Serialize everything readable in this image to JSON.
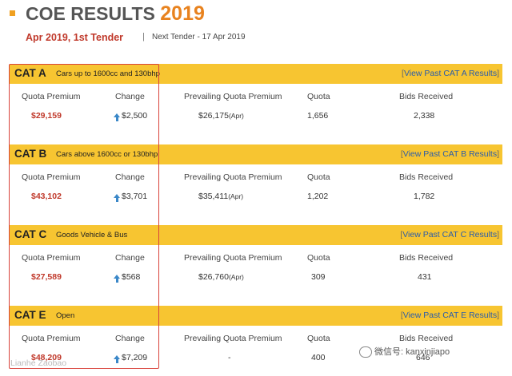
{
  "header": {
    "title_main": "COE RESULTS",
    "title_year": "2019",
    "tender": "Apr 2019, 1st Tender",
    "separator": "|",
    "next_tender": "Next Tender - 17 Apr 2019"
  },
  "columns": {
    "quota_premium": "Quota Premium",
    "change": "Change",
    "prevailing": "Prevailing Quota Premium",
    "quota": "Quota",
    "bids": "Bids Received"
  },
  "categories": [
    {
      "code": "CAT A",
      "desc": "Cars up to 1600cc and 130bhp",
      "view_link": "View Past CAT A Results",
      "quota_premium": "$29,159",
      "change": "$2,500",
      "prevailing": "$26,175",
      "prevailing_suffix": "(Apr)",
      "quota": "1,656",
      "bids": "2,338"
    },
    {
      "code": "CAT B",
      "desc": "Cars above 1600cc or 130bhp",
      "view_link": "View Past CAT B Results",
      "quota_premium": "$43,102",
      "change": "$3,701",
      "prevailing": "$35,411",
      "prevailing_suffix": "(Apr)",
      "quota": "1,202",
      "bids": "1,782"
    },
    {
      "code": "CAT C",
      "desc": "Goods Vehicle & Bus",
      "view_link": "View Past CAT C Results",
      "quota_premium": "$27,589",
      "change": "$568",
      "prevailing": "$26,760",
      "prevailing_suffix": "(Apr)",
      "quota": "309",
      "bids": "431"
    },
    {
      "code": "CAT E",
      "desc": "Open",
      "view_link": "View Past CAT E Results",
      "quota_premium": "$48,209",
      "change": "$7,209",
      "prevailing": "-",
      "prevailing_suffix": "",
      "quota": "400",
      "bids": "646"
    }
  ],
  "watermark": {
    "wechat": "微信号: kanxinjiapo",
    "source": "Lianhe Zaobao"
  },
  "colors": {
    "bar": "#f7c531",
    "accent_year": "#e8821e",
    "premium_red": "#c0392b",
    "arrow_blue": "#3a87c8",
    "highlight_box": "#d9423a"
  }
}
